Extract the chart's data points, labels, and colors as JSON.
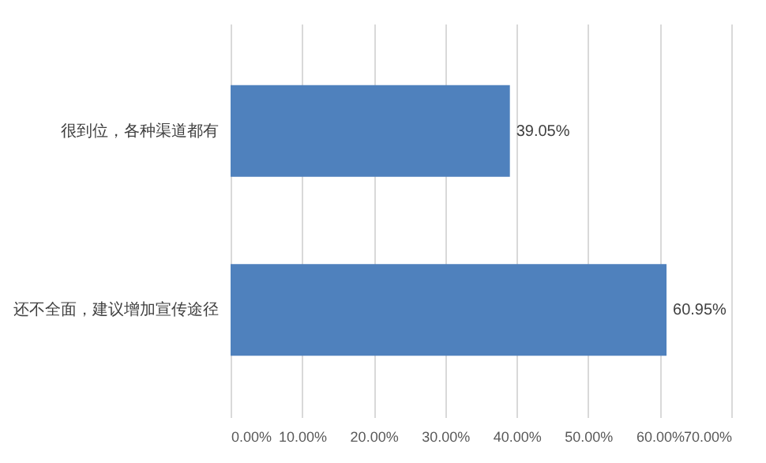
{
  "chart_data": {
    "type": "bar",
    "orientation": "horizontal",
    "categories": [
      "很到位，各种渠道都有",
      "还不全面，建议增加宣传途径"
    ],
    "values": [
      39.05,
      60.95
    ],
    "color": "#4f81bd",
    "value_labels": [
      "39.05%",
      "60.95%"
    ],
    "xlim": [
      0,
      70
    ],
    "xticks": [
      {
        "value": 0,
        "label": "0.00%"
      },
      {
        "value": 10,
        "label": "10.00%"
      },
      {
        "value": 20,
        "label": "20.00%"
      },
      {
        "value": 30,
        "label": "30.00%"
      },
      {
        "value": 40,
        "label": "40.00%"
      },
      {
        "value": 50,
        "label": "50.00%"
      },
      {
        "value": 60,
        "label": "60.00%"
      },
      {
        "value": 70,
        "label": "70.00%"
      }
    ],
    "grid": "x"
  }
}
